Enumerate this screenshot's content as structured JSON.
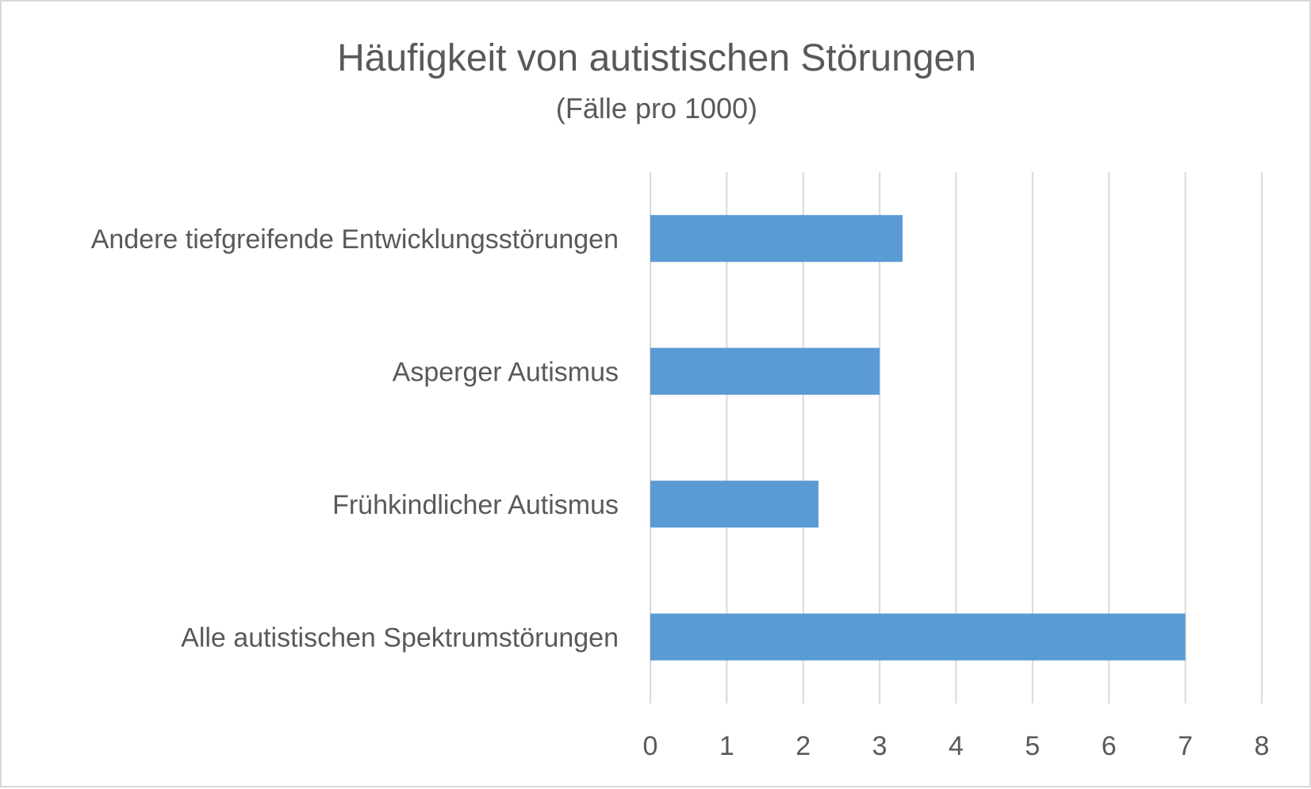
{
  "chart_data": {
    "type": "bar",
    "orientation": "horizontal",
    "title": "Häufigkeit von autistischen Störungen",
    "subtitle": "(Fälle pro 1000)",
    "categories": [
      "Andere tiefgreifende Entwicklungsstörungen",
      "Asperger Autismus",
      "Frühkindlicher Autismus",
      "Alle autistischen Spektrumstörungen"
    ],
    "values": [
      3.3,
      3.0,
      2.2,
      7.0
    ],
    "xlim": [
      0,
      8
    ],
    "xticks": [
      "0",
      "1",
      "2",
      "3",
      "4",
      "5",
      "6",
      "7",
      "8"
    ],
    "grid": true,
    "legend": "none",
    "colors": {
      "bar": "#5b9bd5",
      "grid": "#d9d9d9",
      "text": "#595959",
      "border": "#d9d9d9"
    }
  }
}
